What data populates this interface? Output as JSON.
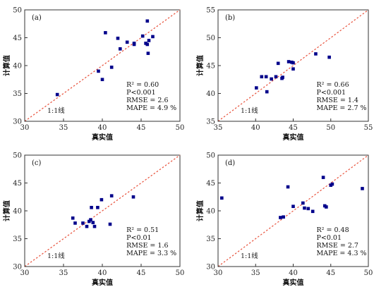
{
  "chart_data": [
    {
      "type": "scatter",
      "panel_label": "(a)",
      "xlabel": "真实值",
      "ylabel": "计算值",
      "xlim": [
        30,
        50
      ],
      "ylim": [
        30,
        50
      ],
      "xticks": [
        30,
        35,
        40,
        45,
        50
      ],
      "yticks": [
        30,
        35,
        40,
        45,
        50
      ],
      "ref_line_label": "1:1线",
      "color": "#00008B",
      "line_color": "#E8503A",
      "stats": {
        "r2": "R² = 0.60",
        "p": "P<0.001",
        "rmse": "RMSE = 2.6",
        "mape": "MAPE = 4.9 %"
      },
      "x": [
        34.2,
        39.5,
        40.0,
        40.4,
        41.2,
        42.0,
        42.3,
        43.2,
        44.1,
        44.1,
        45.2,
        45.6,
        45.8,
        45.8,
        45.9,
        46.0,
        46.5
      ],
      "y": [
        34.8,
        39.0,
        37.5,
        45.9,
        39.7,
        44.9,
        43.0,
        44.2,
        43.8,
        44.0,
        45.3,
        44.0,
        48.0,
        43.8,
        42.2,
        44.5,
        45.2
      ]
    },
    {
      "type": "scatter",
      "panel_label": "(b)",
      "xlabel": "真实值",
      "ylabel": "计算值",
      "xlim": [
        35,
        55
      ],
      "ylim": [
        35,
        55
      ],
      "xticks": [
        35,
        40,
        45,
        50,
        55
      ],
      "yticks": [
        35,
        40,
        45,
        50,
        55
      ],
      "ref_line_label": "1:1线",
      "color": "#00008B",
      "line_color": "#E8503A",
      "stats": {
        "r2": "R² = 0.66",
        "p": "P<0.001",
        "rmse": "RMSE = 1.4",
        "mape": "MAPE = 2.7 %"
      },
      "x": [
        40.1,
        40.8,
        41.4,
        41.5,
        42.1,
        42.7,
        43.0,
        43.5,
        43.6,
        44.4,
        44.8,
        45.0,
        45.0,
        48.0,
        49.8
      ],
      "y": [
        41.0,
        43.0,
        43.0,
        40.3,
        42.6,
        43.0,
        45.4,
        42.7,
        42.9,
        45.7,
        45.6,
        45.5,
        44.4,
        47.1,
        46.5
      ]
    },
    {
      "type": "scatter",
      "panel_label": "(c)",
      "xlabel": "真实值",
      "ylabel": "计算值",
      "xlim": [
        30,
        50
      ],
      "ylim": [
        30,
        50
      ],
      "xticks": [
        30,
        35,
        40,
        45,
        50
      ],
      "yticks": [
        30,
        35,
        40,
        45,
        50
      ],
      "ref_line_label": "1:1线",
      "color": "#00008B",
      "line_color": "#E8503A",
      "stats": {
        "r2": "R² = 0.51",
        "p": "P<0.01",
        "rmse": "RMSE = 1.6",
        "mape": "MAPE = 3.3 %"
      },
      "x": [
        36.2,
        36.5,
        37.5,
        38.0,
        38.3,
        38.5,
        38.6,
        38.8,
        39.0,
        39.4,
        39.9,
        41.0,
        41.2,
        44.0
      ],
      "y": [
        38.7,
        37.8,
        37.8,
        37.2,
        38.1,
        38.4,
        40.6,
        37.9,
        37.2,
        40.6,
        42.0,
        37.6,
        42.7,
        42.5
      ]
    },
    {
      "type": "scatter",
      "panel_label": "(d)",
      "xlabel": "真实值",
      "ylabel": "计算值",
      "xlim": [
        30,
        50
      ],
      "ylim": [
        30,
        50
      ],
      "xticks": [
        30,
        35,
        40,
        45,
        50
      ],
      "yticks": [
        30,
        35,
        40,
        45,
        50
      ],
      "ref_line_label": "1:1线",
      "color": "#00008B",
      "line_color": "#E8503A",
      "stats": {
        "r2": "R² = 0.48",
        "p": "P<0.01",
        "rmse": "RMSE = 2.7",
        "mape": "MAPE = 4.3 %"
      },
      "x": [
        30.5,
        38.3,
        38.7,
        39.3,
        40.0,
        41.3,
        41.5,
        42.0,
        42.6,
        44.0,
        44.2,
        44.4,
        45.0,
        45.2,
        49.2
      ],
      "y": [
        42.3,
        38.8,
        38.9,
        44.3,
        40.8,
        41.4,
        40.5,
        40.4,
        39.9,
        46.0,
        40.9,
        40.7,
        44.6,
        44.8,
        44.0
      ]
    }
  ]
}
